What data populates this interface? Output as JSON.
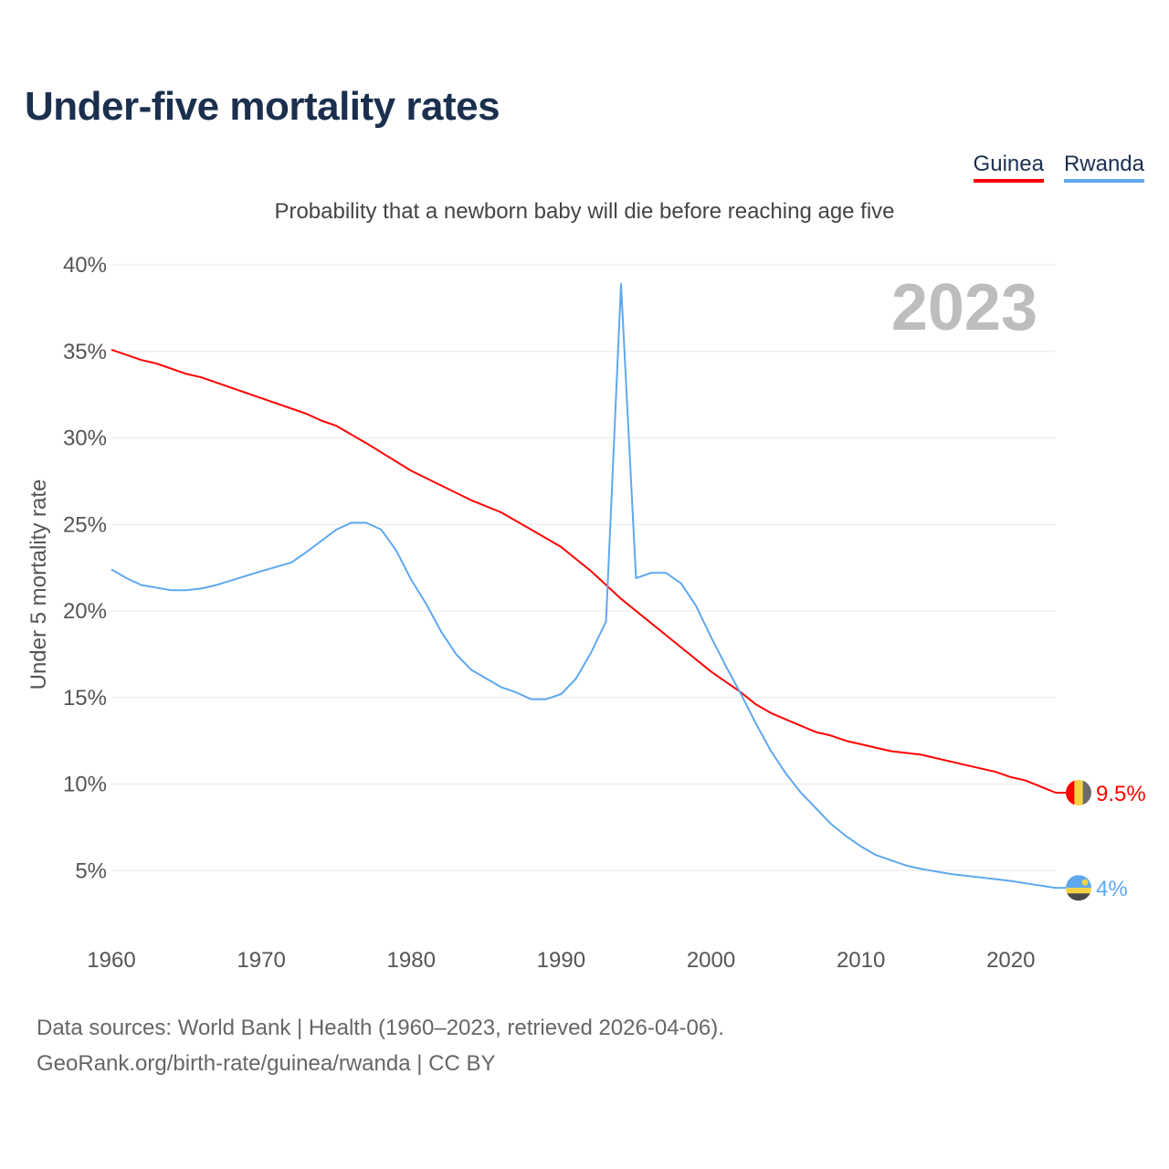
{
  "title": "Under-five mortality rates",
  "footer": {
    "line1": "Data sources: World Bank | Health (1960–2023, retrieved 2026-04-06).",
    "line2": "GeoRank.org/birth-rate/guinea/rwanda | CC BY"
  },
  "chart_data": {
    "type": "line",
    "title": "Under-five mortality rates",
    "subtitle": "Probability that a newborn baby will die before reaching age five",
    "ylabel": "Under 5 mortality rate",
    "xlabel": "",
    "year_label": "2023",
    "xlim": [
      1960,
      2023
    ],
    "ylim": [
      0,
      40
    ],
    "xticks": [
      1960,
      1970,
      1980,
      1990,
      2000,
      2010,
      2020
    ],
    "yticks": [
      5,
      10,
      15,
      20,
      25,
      30,
      35,
      40
    ],
    "ytick_labels": [
      "5%",
      "10%",
      "15%",
      "20%",
      "25%",
      "30%",
      "35%",
      "40%"
    ],
    "grid": true,
    "legend_position": "top-right",
    "series": [
      {
        "name": "Guinea",
        "color": "#ff0000",
        "end_label": "9.5%",
        "flag_colors": [
          "#ff0000",
          "#f5d042",
          "#6b6b6b"
        ],
        "points": [
          [
            1960,
            35.1
          ],
          [
            1962,
            34.5
          ],
          [
            1963,
            34.3
          ],
          [
            1965,
            33.7
          ],
          [
            1966,
            33.5
          ],
          [
            1970,
            32.3
          ],
          [
            1973,
            31.4
          ],
          [
            1974,
            31.0
          ],
          [
            1975,
            30.7
          ],
          [
            1977,
            29.7
          ],
          [
            1980,
            28.1
          ],
          [
            1984,
            26.4
          ],
          [
            1986,
            25.7
          ],
          [
            1988,
            24.7
          ],
          [
            1989,
            24.2
          ],
          [
            1990,
            23.7
          ],
          [
            1992,
            22.3
          ],
          [
            1994,
            20.7
          ],
          [
            2000,
            16.5
          ],
          [
            2002,
            15.3
          ],
          [
            2003,
            14.6
          ],
          [
            2004,
            14.1
          ],
          [
            2007,
            13.0
          ],
          [
            2008,
            12.8
          ],
          [
            2009,
            12.5
          ],
          [
            2012,
            11.9
          ],
          [
            2014,
            11.7
          ],
          [
            2017,
            11.1
          ],
          [
            2019,
            10.7
          ],
          [
            2020,
            10.4
          ],
          [
            2021,
            10.2
          ],
          [
            2023,
            9.5
          ]
        ]
      },
      {
        "name": "Rwanda",
        "color": "#5fa8ee",
        "end_label": "4%",
        "flag_colors": [
          "#5fa8ee",
          "#f5d042",
          "#4a4a48"
        ],
        "points": [
          [
            1960,
            22.4
          ],
          [
            1961,
            21.9
          ],
          [
            1962,
            21.5
          ],
          [
            1964,
            21.2
          ],
          [
            1965,
            21.2
          ],
          [
            1966,
            21.3
          ],
          [
            1967,
            21.5
          ],
          [
            1970,
            22.3
          ],
          [
            1972,
            22.8
          ],
          [
            1973,
            23.4
          ],
          [
            1975,
            24.7
          ],
          [
            1976,
            25.1
          ],
          [
            1977,
            25.1
          ],
          [
            1978,
            24.7
          ],
          [
            1979,
            23.5
          ],
          [
            1980,
            21.8
          ],
          [
            1981,
            20.4
          ],
          [
            1982,
            18.8
          ],
          [
            1983,
            17.5
          ],
          [
            1984,
            16.6
          ],
          [
            1985,
            16.1
          ],
          [
            1986,
            15.6
          ],
          [
            1987,
            15.3
          ],
          [
            1988,
            14.9
          ],
          [
            1989,
            14.9
          ],
          [
            1990,
            15.2
          ],
          [
            1991,
            16.1
          ],
          [
            1992,
            17.6
          ],
          [
            1993,
            19.4
          ],
          [
            1994,
            38.9
          ],
          [
            1995,
            21.9
          ],
          [
            1996,
            22.2
          ],
          [
            1997,
            22.2
          ],
          [
            1998,
            21.6
          ],
          [
            1999,
            20.3
          ],
          [
            2000,
            18.5
          ],
          [
            2001,
            16.8
          ],
          [
            2002,
            15.2
          ],
          [
            2003,
            13.5
          ],
          [
            2004,
            11.9
          ],
          [
            2005,
            10.6
          ],
          [
            2006,
            9.5
          ],
          [
            2007,
            8.6
          ],
          [
            2008,
            7.7
          ],
          [
            2009,
            7.0
          ],
          [
            2010,
            6.4
          ],
          [
            2011,
            5.9
          ],
          [
            2012,
            5.6
          ],
          [
            2013,
            5.3
          ],
          [
            2014,
            5.1
          ],
          [
            2016,
            4.8
          ],
          [
            2018,
            4.6
          ],
          [
            2020,
            4.4
          ],
          [
            2023,
            4.0
          ]
        ]
      }
    ]
  }
}
